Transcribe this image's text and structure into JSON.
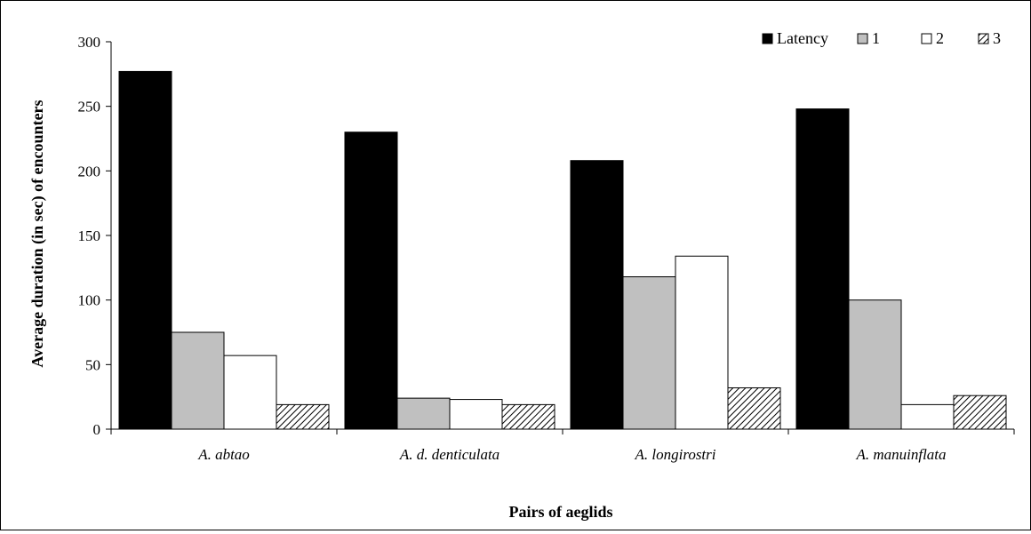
{
  "chart_data": {
    "type": "bar",
    "title": "",
    "xlabel": "Pairs of aeglids",
    "ylabel": "Average duration (in sec) of encounters",
    "ylim": [
      0,
      300
    ],
    "yticks": [
      0,
      50,
      100,
      150,
      200,
      250,
      300
    ],
    "categories": [
      "A. abtao",
      "A. d. denticulata",
      "A. longirostri",
      "A. manuinflata"
    ],
    "series": [
      {
        "name": "Latency",
        "fill": "#000000",
        "pattern": "solid",
        "values": [
          277,
          230,
          208,
          248
        ]
      },
      {
        "name": "1",
        "fill": "#c0c0c0",
        "pattern": "solid",
        "values": [
          75,
          24,
          118,
          100
        ]
      },
      {
        "name": "2",
        "fill": "#ffffff",
        "pattern": "solid",
        "values": [
          57,
          23,
          134,
          19
        ]
      },
      {
        "name": "3",
        "fill": "#ffffff",
        "pattern": "diagonal-hatch",
        "values": [
          19,
          19,
          32,
          26
        ]
      }
    ],
    "grid": false,
    "legend_position": "top-right"
  }
}
